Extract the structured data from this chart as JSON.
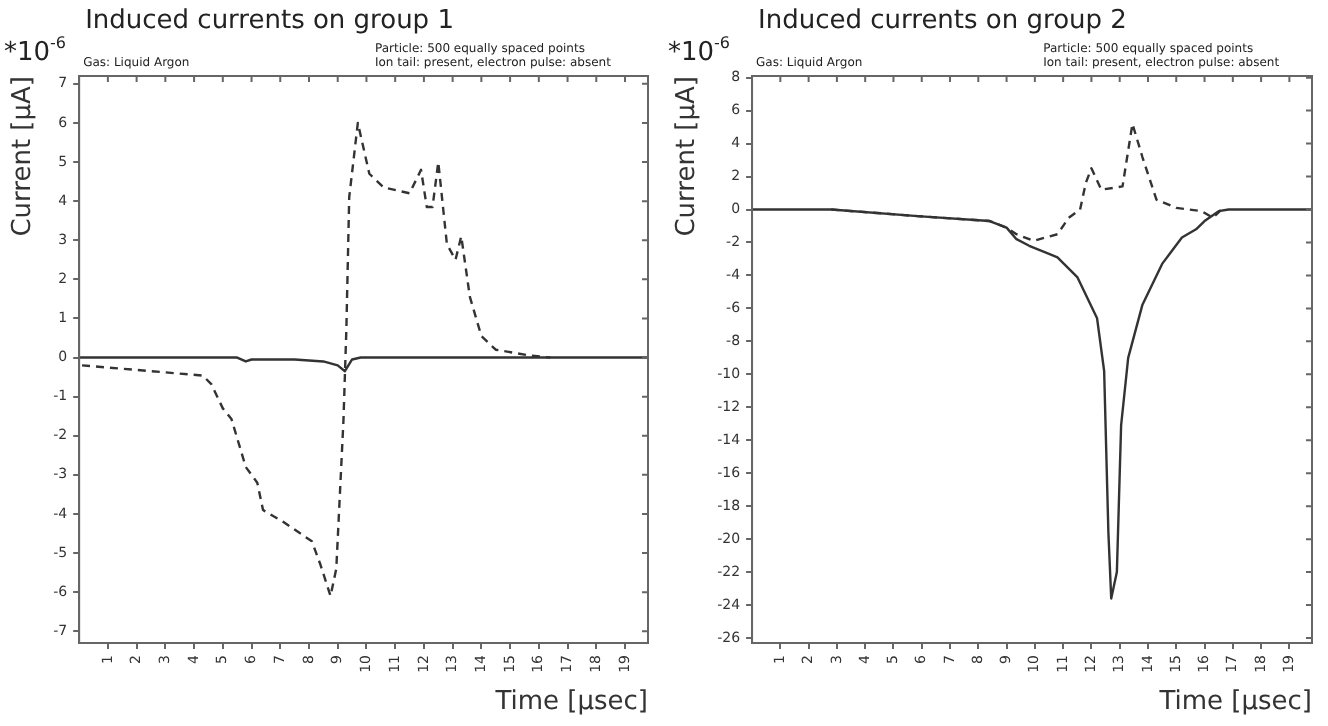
{
  "chart_data": [
    {
      "type": "line",
      "title": "Induced currents on group 1",
      "xlabel": "Time [μsec]",
      "ylabel": "Current [μA]",
      "annotations": [
        "*10$^{-6}$",
        "Gas: Liquid Argon",
        "Particle: 500 equally spaced points",
        "Ion tail: present, electron pulse: absent"
      ],
      "xlim": [
        0,
        19.8
      ],
      "xticks": [
        1,
        2,
        3,
        4,
        5,
        6,
        7,
        8,
        9,
        10,
        11,
        12,
        13,
        14,
        15,
        16,
        17,
        18,
        19
      ],
      "ylim": [
        -7.3,
        7.2
      ],
      "yticks": [
        -7,
        -6,
        -5,
        -4,
        -3,
        -2,
        -1,
        0,
        1,
        2,
        3,
        4,
        5,
        6,
        7
      ],
      "grid": false,
      "legend": false,
      "marker": "none",
      "series": [
        {
          "color": "#333333",
          "line_style": "solid",
          "x": [
            0,
            5.5,
            5.8,
            6.0,
            7.5,
            8.5,
            9.0,
            9.25,
            9.5,
            9.8,
            19.8
          ],
          "values": [
            0,
            0,
            -0.1,
            -0.05,
            -0.05,
            -0.1,
            -0.2,
            -0.35,
            -0.05,
            0,
            0
          ]
        },
        {
          "color": "#333333",
          "line_style": "dashed",
          "x": [
            0.1,
            4.3,
            4.6,
            5.0,
            5.3,
            5.8,
            6.2,
            6.4,
            7.1,
            8.1,
            8.4,
            8.75,
            8.95,
            9.2,
            9.3,
            9.4,
            9.7,
            10.1,
            10.6,
            11.5,
            11.9,
            12.1,
            12.3,
            12.5,
            12.8,
            13.1,
            13.3,
            13.6,
            14.0,
            14.5,
            15.7,
            16.4
          ],
          "values": [
            -0.2,
            -0.46,
            -0.68,
            -1.3,
            -1.57,
            -2.8,
            -3.2,
            -3.9,
            -4.2,
            -4.7,
            -5.3,
            -6.1,
            -5.4,
            -1.6,
            0.7,
            4.1,
            6.0,
            4.7,
            4.35,
            4.2,
            4.8,
            3.85,
            3.85,
            5.0,
            2.9,
            2.5,
            3.1,
            1.55,
            0.55,
            0.2,
            0.05,
            0
          ]
        }
      ]
    },
    {
      "type": "line",
      "title": "Induced currents on group 2",
      "xlabel": "Time [μsec]",
      "ylabel": "Current [μA]",
      "annotations": [
        "*10$^{-6}$",
        "Gas: Liquid Argon",
        "Particle: 500 equally spaced points",
        "Ion tail: present, electron pulse: absent"
      ],
      "xlim": [
        0,
        19.8
      ],
      "xticks": [
        1,
        2,
        3,
        4,
        5,
        6,
        7,
        8,
        9,
        10,
        11,
        12,
        13,
        14,
        15,
        16,
        17,
        18,
        19
      ],
      "ylim": [
        -26.3,
        8.1
      ],
      "yticks": [
        -26,
        -24,
        -22,
        -20,
        -18,
        -16,
        -14,
        -12,
        -10,
        -8,
        -6,
        -4,
        -2,
        0,
        2,
        4,
        6,
        8
      ],
      "grid": false,
      "legend": false,
      "marker": "none",
      "series": [
        {
          "color": "#333333",
          "line_style": "solid",
          "x": [
            0,
            2.8,
            5.85,
            8.4,
            9.0,
            9.35,
            9.8,
            10.8,
            11.5,
            12.2,
            12.45,
            12.6,
            12.7,
            12.9,
            13.05,
            13.3,
            13.8,
            14.5,
            15.2,
            15.7,
            16.0,
            16.5,
            16.85,
            19.8
          ],
          "values": [
            0,
            0,
            -0.4,
            -0.7,
            -1.1,
            -1.8,
            -2.2,
            -2.9,
            -4.1,
            -6.6,
            -9.8,
            -19.6,
            -23.6,
            -22,
            -13.1,
            -9,
            -5.8,
            -3.3,
            -1.7,
            -1.2,
            -0.7,
            -0.1,
            0,
            0
          ]
        },
        {
          "color": "#333333",
          "line_style": "dashed",
          "x": [
            2.8,
            5.85,
            8.4,
            9.0,
            9.35,
            9.95,
            10.8,
            11.2,
            11.6,
            11.8,
            12.0,
            12.35,
            13.1,
            13.45,
            13.8,
            14.3,
            15.0,
            15.9,
            16.3,
            16.6
          ],
          "values": [
            0,
            -0.4,
            -0.7,
            -1.1,
            -1.5,
            -1.9,
            -1.5,
            -0.5,
            0,
            1.6,
            2.5,
            1.2,
            1.4,
            5.2,
            3.2,
            0.6,
            0.1,
            -0.1,
            -0.5,
            0
          ]
        }
      ]
    }
  ]
}
